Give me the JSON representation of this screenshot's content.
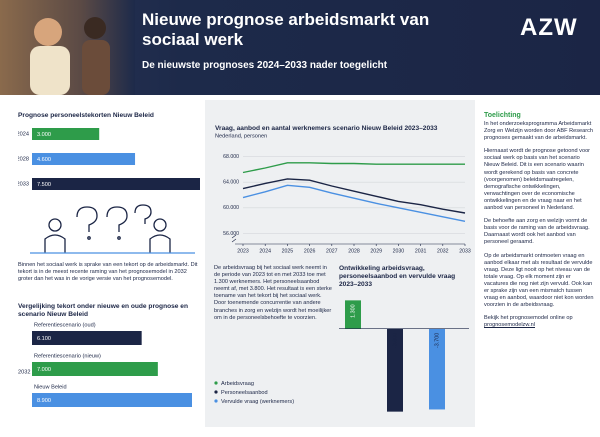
{
  "header": {
    "title": "Nieuwe prognose arbeidsmarkt van sociaal werk",
    "subtitle": "De nieuwste prognoses 2024–2033 nader toegelicht",
    "logo": "AZW"
  },
  "shortage": {
    "type": "bar",
    "title": "Prognose personeelstekorten Nieuw Beleid",
    "categories": [
      "2024",
      "2028",
      "2033"
    ],
    "values": [
      3000,
      4600,
      7500
    ],
    "value_labels": [
      "3.000",
      "4.600",
      "7.500"
    ],
    "colors": [
      "#2e9c4a",
      "#4a90e2",
      "#1b2545"
    ],
    "xlim": [
      0,
      7500
    ]
  },
  "shortage_text": "Binnen het sociaal werk is sprake van een tekort op de arbeidsmarkt. Dit tekort is in de meest recente raming van het prognosemodel in 2032 groter dan het was in de vorige versie van het prognosemodel.",
  "comparison": {
    "type": "bar",
    "title": "Vergelijking tekort onder nieuwe en oude prognose en scenario Nieuw Beleid",
    "year": "2032",
    "series": [
      {
        "name": "Referentiescenario (oud)",
        "color": "#1b2545",
        "values": [
          6100
        ],
        "value_labels": [
          "6.100"
        ]
      },
      {
        "name": "Referentiescenario (nieuw)",
        "color": "#2e9c4a",
        "values": [
          7000
        ],
        "value_labels": [
          "7.000"
        ]
      },
      {
        "name": "Nieuw Beleid",
        "color": "#4a90e2",
        "values": [
          8900
        ],
        "value_labels": [
          "8.900"
        ]
      }
    ],
    "xlim": [
      0,
      8900
    ]
  },
  "trend": {
    "type": "line",
    "title": "Vraag, aanbod en aantal werknemers scenario Nieuw Beleid 2023–2033",
    "subtitle": "Nederland, personen",
    "x": [
      2023,
      2024,
      2025,
      2026,
      2027,
      2028,
      2029,
      2030,
      2031,
      2032,
      2033
    ],
    "series": [
      {
        "name": "Arbeidsvraag",
        "color": "#2e9c4a",
        "values": [
          65500,
          66200,
          67000,
          67000,
          66900,
          66900,
          66800,
          66800,
          66800,
          66800,
          66800
        ]
      },
      {
        "name": "Personeelsaanbod",
        "color": "#1b2545",
        "values": [
          63000,
          63800,
          64500,
          64300,
          63400,
          62600,
          61800,
          61000,
          60500,
          59800,
          59200
        ]
      },
      {
        "name": "Vervulde vraag (werknemers)",
        "color": "#4a90e2",
        "values": [
          61600,
          62500,
          63500,
          63200,
          62300,
          61500,
          60700,
          60000,
          59300,
          58600,
          57900
        ]
      }
    ],
    "xlim": [
      2023,
      2033
    ],
    "xticks": [
      2023,
      2024,
      2025,
      2026,
      2027,
      2028,
      2029,
      2030,
      2031,
      2032,
      2033
    ],
    "ylim": [
      55000,
      69000
    ],
    "yticks": [
      {
        "value": 56000,
        "label": "56.000"
      },
      {
        "value": 60000,
        "label": "60.000"
      },
      {
        "value": 64000,
        "label": "64.000"
      },
      {
        "value": 68000,
        "label": "68.000"
      }
    ],
    "grid": true
  },
  "trend_text": "De arbeidsvraag bij het sociaal werk neemt in de periode van 2023 tot en met 2033 toe met 1.300 werknemers. Het personeelsaanbod neemt af, met 3.800. Het resultaat is een sterke toename van het tekort bij het sociaal werk. Door toenemende concurrentie van andere branches in zorg en welzijn wordt het moeilijker om in de personeelsbehoefte te voorzien.",
  "change": {
    "type": "bar",
    "title": "Ontwikkeling arbeidsvraag, personeelsaanbod en vervulde vraag 2023–2033",
    "values": [
      1300,
      -3800,
      -3700
    ],
    "value_labels": [
      "1.300",
      "-3.800",
      "-3.700"
    ],
    "colors": [
      "#2e9c4a",
      "#1b2545",
      "#4a90e2"
    ],
    "ylim": [
      -4000,
      1500
    ]
  },
  "explanation": {
    "title": "Toelichting",
    "paragraphs": [
      "In het onderzoeksprogramma Arbeidsmarkt Zorg en Welzijn worden door ABF Research prognoses gemaakt van de arbeidsmarkt.",
      "Hiernaast wordt de prognose getoond voor sociaal werk op basis van het scenario Nieuw Beleid. Dit is een scenario waarin wordt gerekend op basis van concrete (voorgenomen) beleidsmaatregelen, demografische ontwikkelingen, verwachtingen over de economische ontwikkelingen en de vraag naar en het aanbod van personeel in Nederland.",
      "De behoefte aan zorg en welzijn vormt de basis voor de raming van de arbeidsvraag. Daarnaast wordt ook het aanbod van personeel geraamd.",
      "Op de arbeidsmarkt ontmoeten vraag en aanbod elkaar met als resultaat de vervulde vraag. Deze ligt nooit op het niveau van de totale vraag. Op elk moment zijn er vacatures die nog niet zijn vervuld. Ook kan er sprake zijn van een mismatch tussen vraag en aanbod, waardoor niet kon worden voorzien in de arbeidsvraag."
    ],
    "link_intro": "Bekijk het prognosemodel online op",
    "link": "prognosemodelzw.nl"
  }
}
